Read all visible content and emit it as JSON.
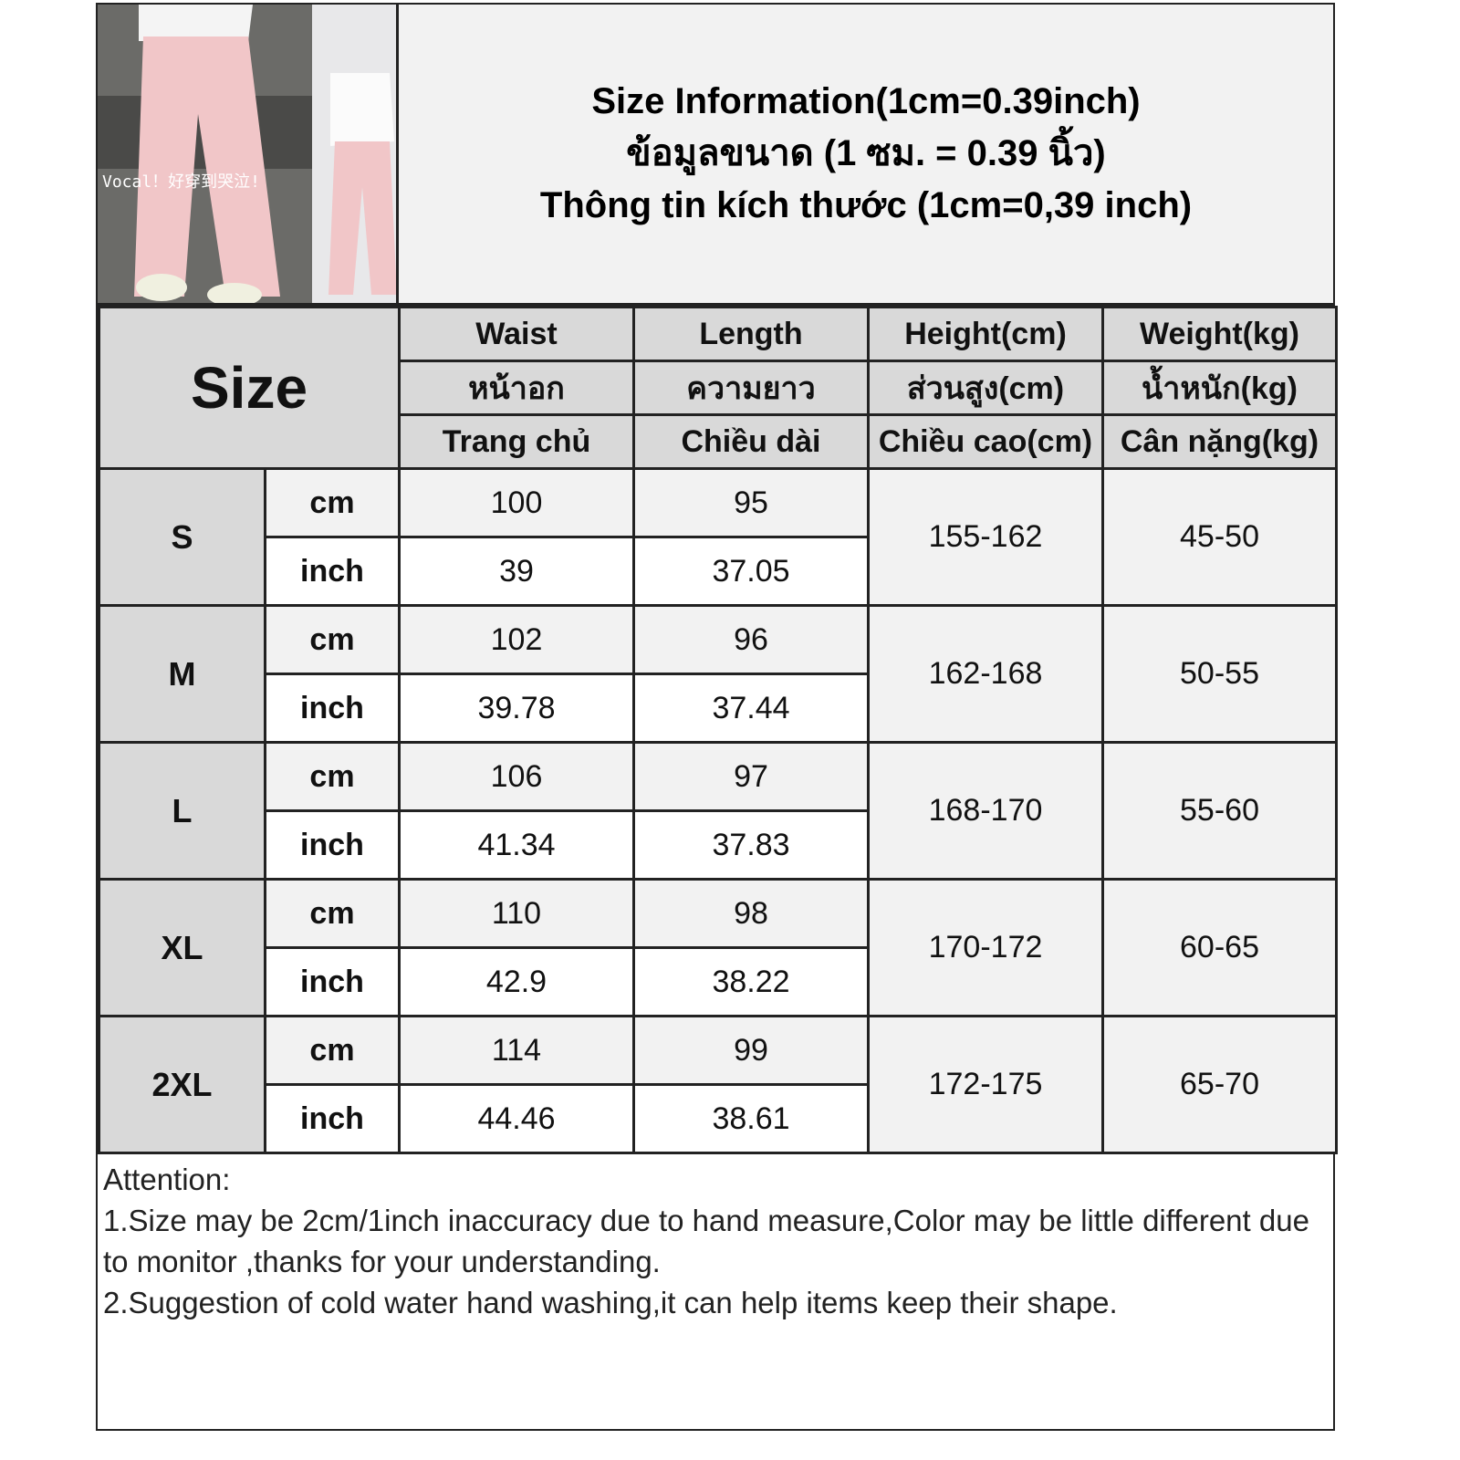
{
  "photo": {
    "caption": "Vocal！好穿到哭泣!"
  },
  "title": {
    "line1": "Size Information(1cm=0.39inch)",
    "line2": "ข้อมูลขนาด (1 ซม. = 0.39 นิ้ว)",
    "line3": "Thông tin kích thước (1cm=0,39 inch)"
  },
  "header": {
    "size": "Size",
    "columns": [
      {
        "en": "Waist",
        "th": "หน้าอก",
        "vi": "Trang chủ"
      },
      {
        "en": "Length",
        "th": "ความยาว",
        "vi": "Chiều dài"
      },
      {
        "en": "Height(cm)",
        "th": "ส่วนสูง(cm)",
        "vi": "Chiều cao(cm)"
      },
      {
        "en": "Weight(kg)",
        "th": "น้ำหนัก(kg)",
        "vi": "Cân nặng(kg)"
      }
    ]
  },
  "units": {
    "cm": "cm",
    "inch": "inch"
  },
  "rows": [
    {
      "size": "S",
      "waist_cm": "100",
      "length_cm": "95",
      "waist_in": "39",
      "length_in": "37.05",
      "height": "155-162",
      "weight": "45-50"
    },
    {
      "size": "M",
      "waist_cm": "102",
      "length_cm": "96",
      "waist_in": "39.78",
      "length_in": "37.44",
      "height": "162-168",
      "weight": "50-55"
    },
    {
      "size": "L",
      "waist_cm": "106",
      "length_cm": "97",
      "waist_in": "41.34",
      "length_in": "37.83",
      "height": "168-170",
      "weight": "55-60"
    },
    {
      "size": "XL",
      "waist_cm": "110",
      "length_cm": "98",
      "waist_in": "42.9",
      "length_in": "38.22",
      "height": "170-172",
      "weight": "60-65"
    },
    {
      "size": "2XL",
      "waist_cm": "114",
      "length_cm": "99",
      "waist_in": "44.46",
      "length_in": "38.61",
      "height": "172-175",
      "weight": "65-70"
    }
  ],
  "attention": {
    "heading": "Attention:",
    "note1": "1.Size may be 2cm/1inch inaccuracy due to hand measure,Color may be little different due to monitor ,thanks for your understanding.",
    "note2": "2.Suggestion of cold water hand washing,it can help items keep their shape."
  }
}
